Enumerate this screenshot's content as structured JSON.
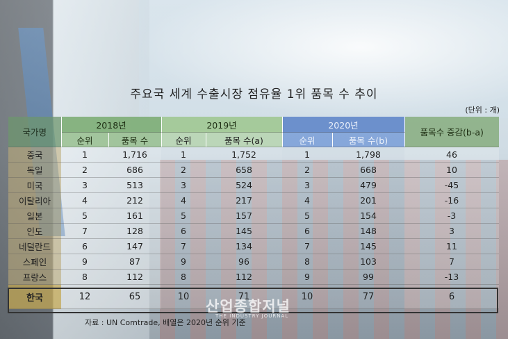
{
  "title": "주요국 세계 수출시장 점유율 1위 품목 수 추이",
  "unit": "(단위 : 개)",
  "table": {
    "country_header": "국가명",
    "years": [
      "2018년",
      "2019년",
      "2020년"
    ],
    "diff_header": "품목수 증감(b-a)",
    "sub": {
      "rank_2018": "순위",
      "items_2018": "품목 수",
      "rank_2019": "순위",
      "items_2019": "품목 수(a)",
      "rank_2020": "순위",
      "items_2020": "품목 수(b)"
    },
    "rows": [
      {
        "country": "중국",
        "r18": "1",
        "i18": "1,716",
        "r19": "1",
        "i19": "1,752",
        "r20": "1",
        "i20": "1,798",
        "diff": "46"
      },
      {
        "country": "독일",
        "r18": "2",
        "i18": "686",
        "r19": "2",
        "i19": "658",
        "r20": "2",
        "i20": "668",
        "diff": "10"
      },
      {
        "country": "미국",
        "r18": "3",
        "i18": "513",
        "r19": "3",
        "i19": "524",
        "r20": "3",
        "i20": "479",
        "diff": "-45"
      },
      {
        "country": "이탈리아",
        "r18": "4",
        "i18": "212",
        "r19": "4",
        "i19": "217",
        "r20": "4",
        "i20": "201",
        "diff": "-16"
      },
      {
        "country": "일본",
        "r18": "5",
        "i18": "161",
        "r19": "5",
        "i19": "157",
        "r20": "5",
        "i20": "154",
        "diff": "-3"
      },
      {
        "country": "인도",
        "r18": "7",
        "i18": "128",
        "r19": "6",
        "i19": "145",
        "r20": "6",
        "i20": "148",
        "diff": "3"
      },
      {
        "country": "네덜란드",
        "r18": "6",
        "i18": "147",
        "r19": "7",
        "i19": "134",
        "r20": "7",
        "i20": "145",
        "diff": "11"
      },
      {
        "country": "스페인",
        "r18": "9",
        "i18": "87",
        "r19": "9",
        "i19": "96",
        "r20": "8",
        "i20": "103",
        "diff": "7"
      },
      {
        "country": "프랑스",
        "r18": "8",
        "i18": "112",
        "r19": "8",
        "i19": "112",
        "r20": "9",
        "i20": "99",
        "diff": "-13"
      }
    ],
    "korea": {
      "country": "한국",
      "r18": "12",
      "i18": "65",
      "r19": "10",
      "i19": "71",
      "r20": "10",
      "i20": "77",
      "diff": "6"
    }
  },
  "source": "자료 : UN Comtrade, 배열은 2020년 순위 기준",
  "watermark": "산업종합저널",
  "watermark_sub": "THE INDUSTRY JOURNAL"
}
